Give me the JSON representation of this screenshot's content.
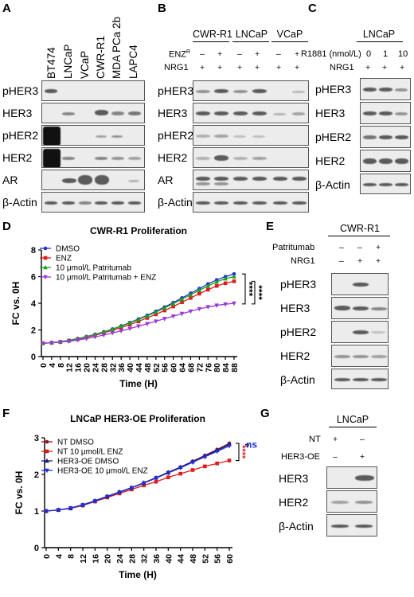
{
  "panels": {
    "A": "A",
    "B": "B",
    "C": "C",
    "D": "D",
    "E": "E",
    "F": "F",
    "G": "G"
  },
  "panelA": {
    "columns": [
      "BT474",
      "LNCaP",
      "VCaP",
      "CWR-R1",
      "MDA PCa 2b",
      "LAPC4"
    ],
    "rows": [
      "pHER3",
      "HER3",
      "pHER2",
      "HER2",
      "AR",
      "β-Actin"
    ]
  },
  "panelB": {
    "groups": [
      "CWR-R1",
      "LNCaP",
      "VCaP"
    ],
    "enz_label": "ENZ",
    "enz_sup": "R",
    "nrg1_label": "NRG1",
    "enz_signs": [
      "–",
      "+",
      "–",
      "+",
      "–",
      "+"
    ],
    "nrg1_signs": [
      "+",
      "+",
      "+",
      "+",
      "+",
      "+"
    ],
    "rows": [
      "pHER3",
      "HER3",
      "pHER2",
      "HER2",
      "AR",
      "β-Actin"
    ]
  },
  "panelC": {
    "title": "LNCaP",
    "r1881_label": "R1881 (nmol/L)",
    "r1881_values": [
      "0",
      "1",
      "10"
    ],
    "nrg1_label": "NRG1",
    "nrg1_signs": [
      "+",
      "+",
      "+"
    ],
    "rows": [
      "pHER3",
      "HER3",
      "pHER2",
      "HER2",
      "β-Actin"
    ]
  },
  "panelE": {
    "title": "CWR-R1",
    "patritumab_label": "Patritumab",
    "patritumab_signs": [
      "–",
      "–",
      "+"
    ],
    "nrg1_label": "NRG1",
    "nrg1_signs": [
      "–",
      "+",
      "+"
    ],
    "rows": [
      "pHER3",
      "HER3",
      "pHER2",
      "HER2",
      "β-Actin"
    ]
  },
  "panelG": {
    "title": "LNCaP",
    "nt_label": "NT",
    "nt_signs": [
      "+",
      "–"
    ],
    "oe_label": "HER3-OE",
    "oe_signs": [
      "–",
      "+"
    ],
    "rows": [
      "HER3",
      "HER2",
      "β-Actin"
    ]
  },
  "chart_data": [
    {
      "type": "line",
      "title": "CWR-R1 Proliferation",
      "xlabel": "Time (H)",
      "ylabel": "FC vs. 0H",
      "xlim": [
        0,
        88
      ],
      "ylim": [
        0,
        8
      ],
      "x": [
        0,
        4,
        8,
        12,
        16,
        20,
        24,
        28,
        32,
        36,
        40,
        44,
        48,
        52,
        56,
        60,
        64,
        68,
        72,
        76,
        80,
        84,
        88
      ],
      "xticks": [
        "0",
        "4",
        "8",
        "12",
        "16",
        "20",
        "24",
        "28",
        "32",
        "36",
        "40",
        "44",
        "48",
        "52",
        "56",
        "60",
        "64",
        "68",
        "72",
        "76",
        "80",
        "84",
        "88"
      ],
      "yticks": [
        "0",
        "2",
        "4",
        "6",
        "8"
      ],
      "significance": [
        "****",
        "****"
      ],
      "series": [
        {
          "name": "DMSO",
          "color": "#1f2fd6",
          "marker": "circle",
          "values": [
            1.0,
            1.05,
            1.12,
            1.22,
            1.35,
            1.5,
            1.67,
            1.86,
            2.07,
            2.3,
            2.55,
            2.82,
            3.1,
            3.4,
            3.72,
            4.05,
            4.4,
            4.75,
            5.1,
            5.45,
            5.75,
            6.0,
            6.2
          ]
        },
        {
          "name": "ENZ",
          "color": "#e01b1b",
          "marker": "square",
          "values": [
            1.0,
            1.04,
            1.1,
            1.19,
            1.3,
            1.44,
            1.6,
            1.78,
            1.97,
            2.18,
            2.4,
            2.64,
            2.9,
            3.17,
            3.46,
            3.76,
            4.08,
            4.4,
            4.72,
            5.02,
            5.3,
            5.5,
            5.65
          ]
        },
        {
          "name": "10 μmol/L Patritumab",
          "color": "#1aa51a",
          "marker": "triangle-up",
          "values": [
            1.0,
            1.05,
            1.11,
            1.2,
            1.33,
            1.48,
            1.65,
            1.84,
            2.05,
            2.28,
            2.52,
            2.78,
            3.05,
            3.34,
            3.65,
            3.97,
            4.3,
            4.63,
            4.97,
            5.3,
            5.6,
            5.85,
            6.0
          ]
        },
        {
          "name": "10 μmol/L Patritumab + ENZ",
          "color": "#9a3ad6",
          "marker": "triangle-down",
          "values": [
            1.0,
            1.03,
            1.08,
            1.15,
            1.24,
            1.35,
            1.48,
            1.62,
            1.77,
            1.93,
            2.1,
            2.28,
            2.46,
            2.65,
            2.84,
            3.03,
            3.22,
            3.4,
            3.58,
            3.72,
            3.84,
            3.93,
            4.0
          ]
        }
      ]
    },
    {
      "type": "line",
      "title": "LNCaP HER3-OE Proliferation",
      "xlabel": "Time (H)",
      "ylabel": "FC vs. 0H",
      "xlim": [
        0,
        60
      ],
      "ylim": [
        0,
        3
      ],
      "x": [
        0,
        4,
        8,
        12,
        16,
        20,
        24,
        28,
        32,
        36,
        40,
        44,
        48,
        52,
        56,
        60
      ],
      "xticks": [
        "0",
        "4",
        "8",
        "12",
        "16",
        "20",
        "24",
        "28",
        "32",
        "36",
        "40",
        "44",
        "48",
        "52",
        "56",
        "60"
      ],
      "yticks": [
        "0",
        "1",
        "2",
        "3"
      ],
      "significance": [
        "****",
        "ns"
      ],
      "series": [
        {
          "name": "NT DMSO",
          "color": "#8b1a1a",
          "marker": "circle",
          "values": [
            1.0,
            1.03,
            1.08,
            1.17,
            1.28,
            1.4,
            1.52,
            1.64,
            1.77,
            1.91,
            2.06,
            2.2,
            2.36,
            2.52,
            2.68,
            2.85
          ]
        },
        {
          "name": "NT 10 μmol/L ENZ",
          "color": "#e01b1b",
          "marker": "square",
          "values": [
            1.0,
            1.03,
            1.07,
            1.15,
            1.26,
            1.37,
            1.48,
            1.59,
            1.7,
            1.8,
            1.92,
            2.02,
            2.12,
            2.22,
            2.3,
            2.38
          ]
        },
        {
          "name": "HER3-OE DMSO",
          "color": "#1a1a7a",
          "marker": "triangle-up",
          "values": [
            1.0,
            1.03,
            1.08,
            1.17,
            1.28,
            1.4,
            1.52,
            1.64,
            1.77,
            1.91,
            2.05,
            2.2,
            2.35,
            2.5,
            2.66,
            2.82
          ]
        },
        {
          "name": "HER3-OE 10 μmol/L ENZ",
          "color": "#1f2fd6",
          "marker": "triangle-down",
          "values": [
            1.0,
            1.03,
            1.08,
            1.16,
            1.27,
            1.39,
            1.51,
            1.63,
            1.76,
            1.9,
            2.04,
            2.18,
            2.33,
            2.48,
            2.63,
            2.78
          ]
        }
      ]
    }
  ]
}
